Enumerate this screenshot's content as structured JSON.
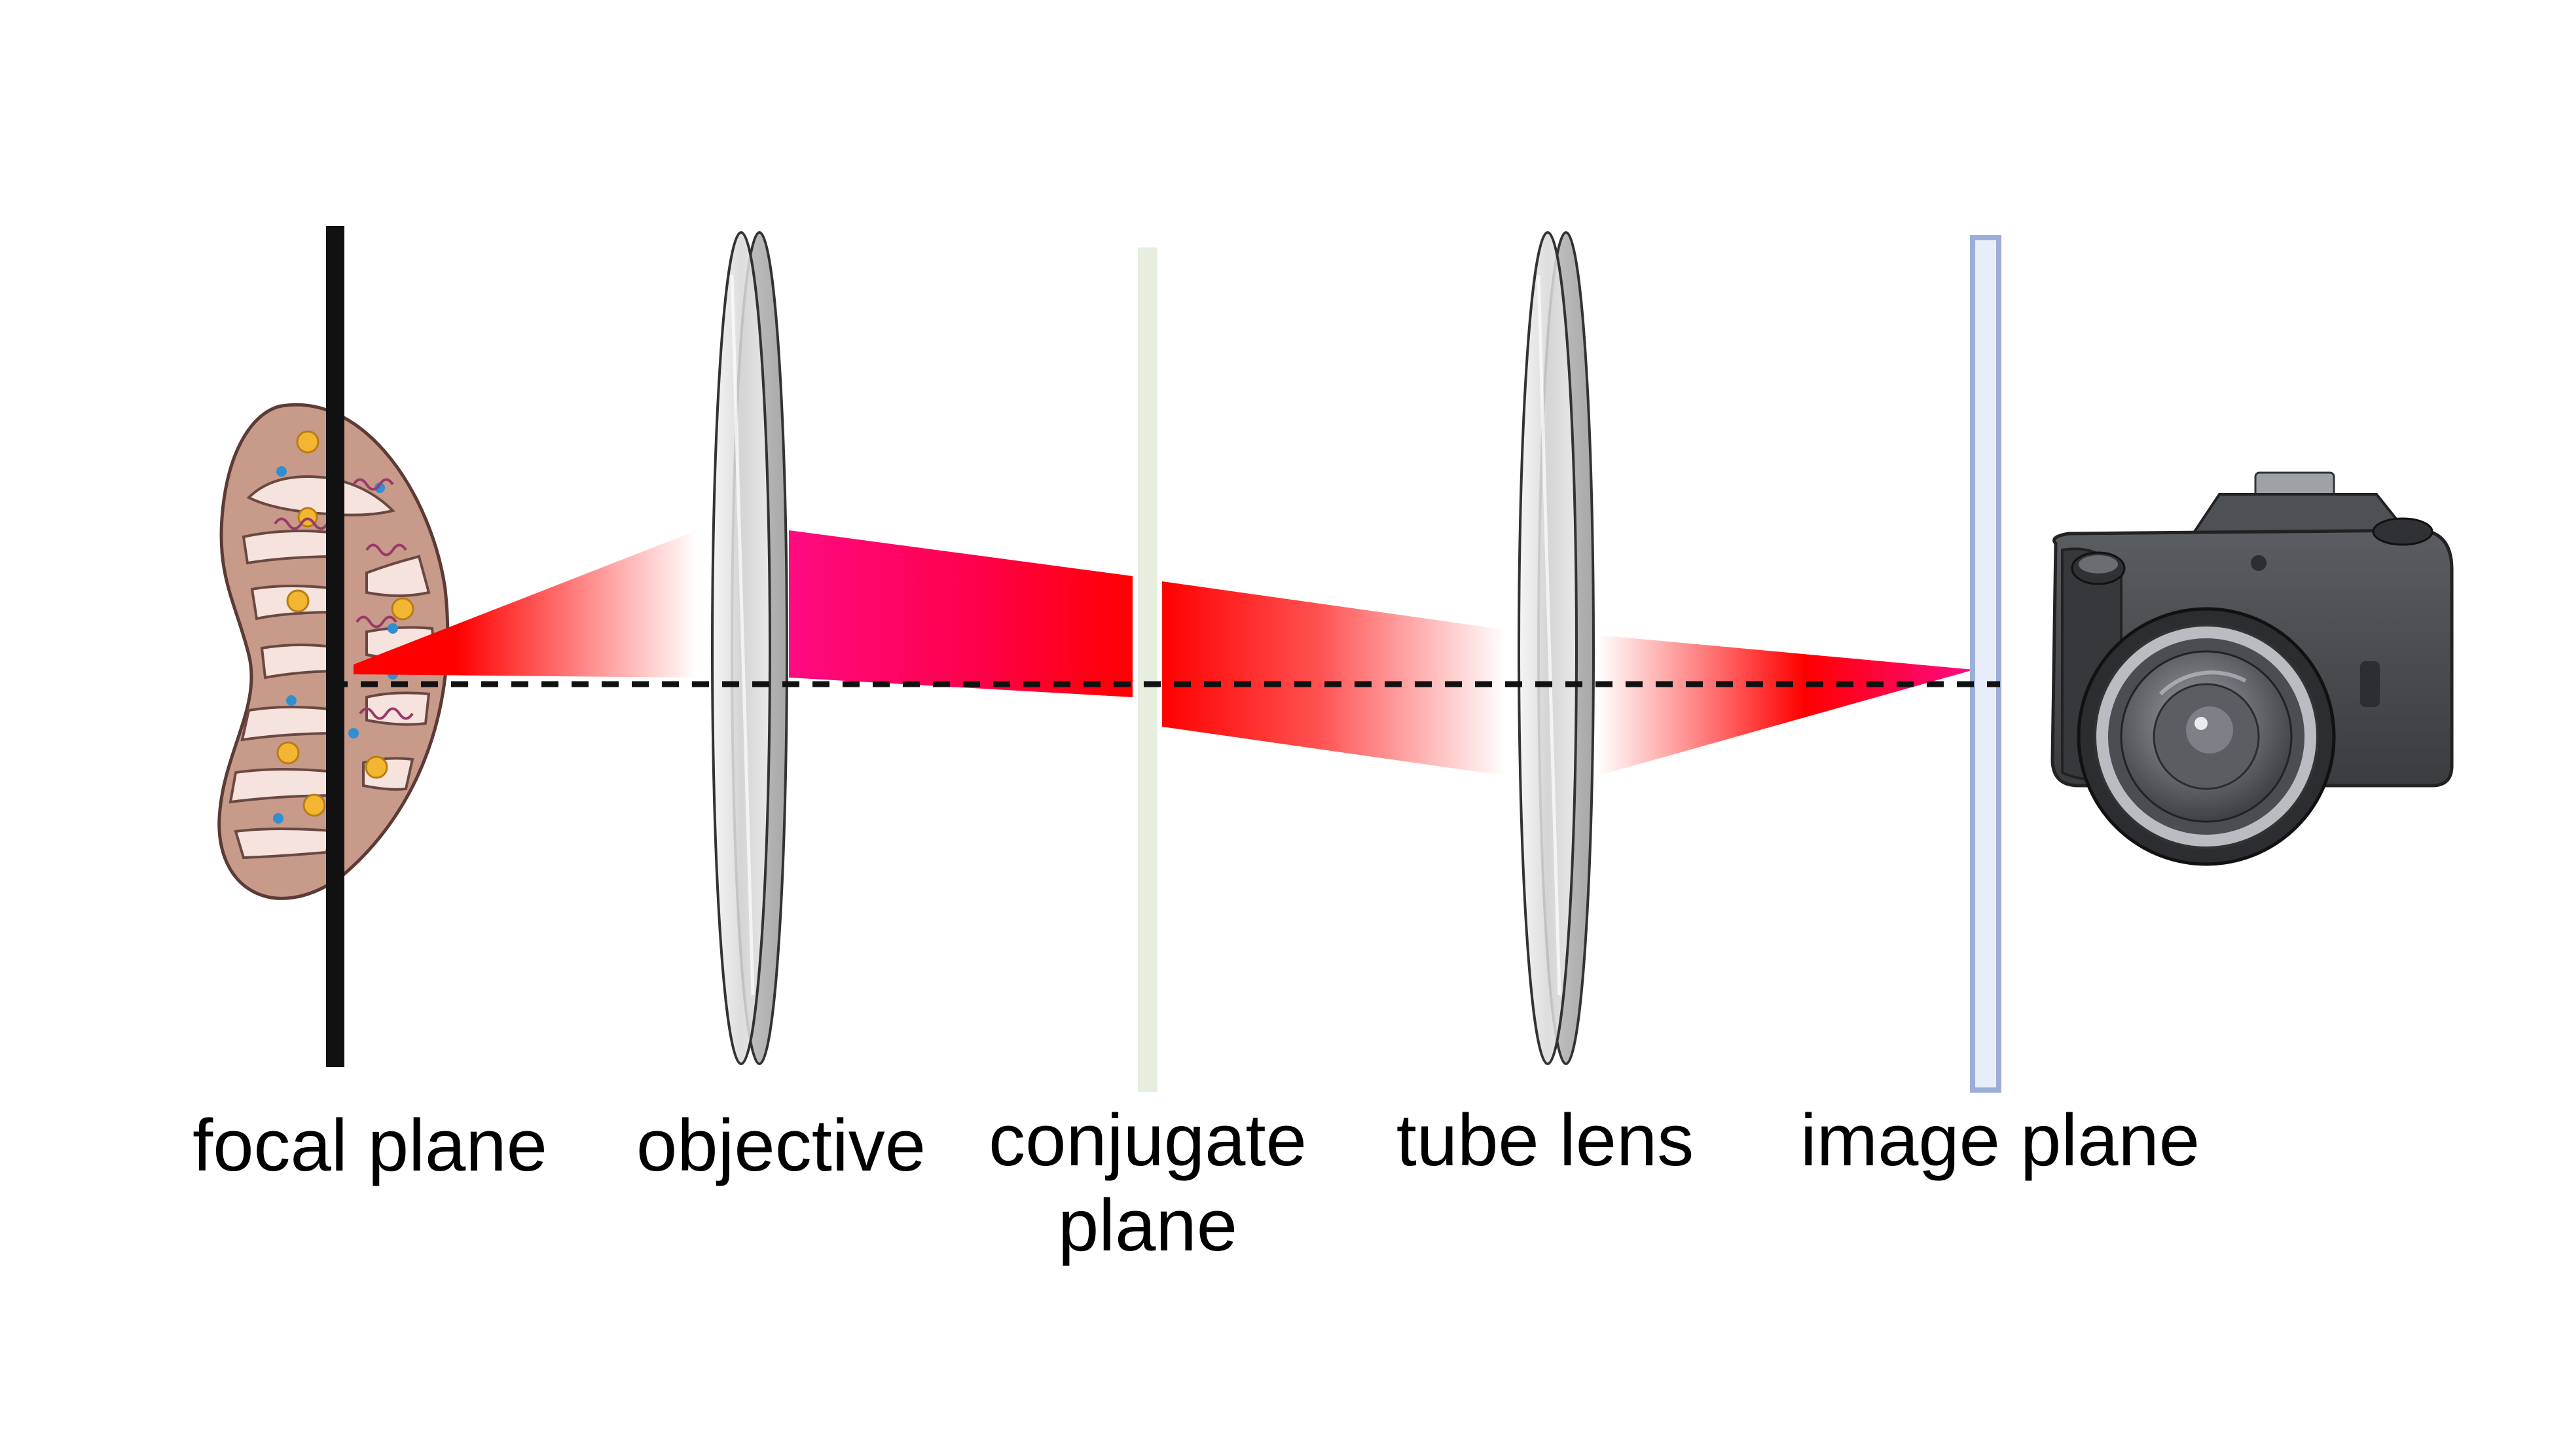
{
  "labels": {
    "focal_plane": "focal plane",
    "objective": "objective",
    "conjugate_plane_line1": "conjugate",
    "conjugate_plane_line2": "plane",
    "tube_lens": "tube lens",
    "image_plane": "image plane"
  },
  "colors": {
    "background": "#ffffff",
    "focal_plane_bar": "#111111",
    "beam_red": "#ff0000",
    "beam_magenta": "#ff0a7a",
    "conjugate_plane": "#e6eedf",
    "image_plane_fill": "#e8eef9",
    "image_plane_stroke": "#9aaed8",
    "optical_axis": "#111111",
    "lens_fill": "#e3e3e3",
    "mitochondrion_fill": "#c79a8a",
    "camera_body": "#4a4c4f"
  },
  "icons": {
    "specimen": "mitochondrion-icon",
    "detector": "camera-icon"
  }
}
